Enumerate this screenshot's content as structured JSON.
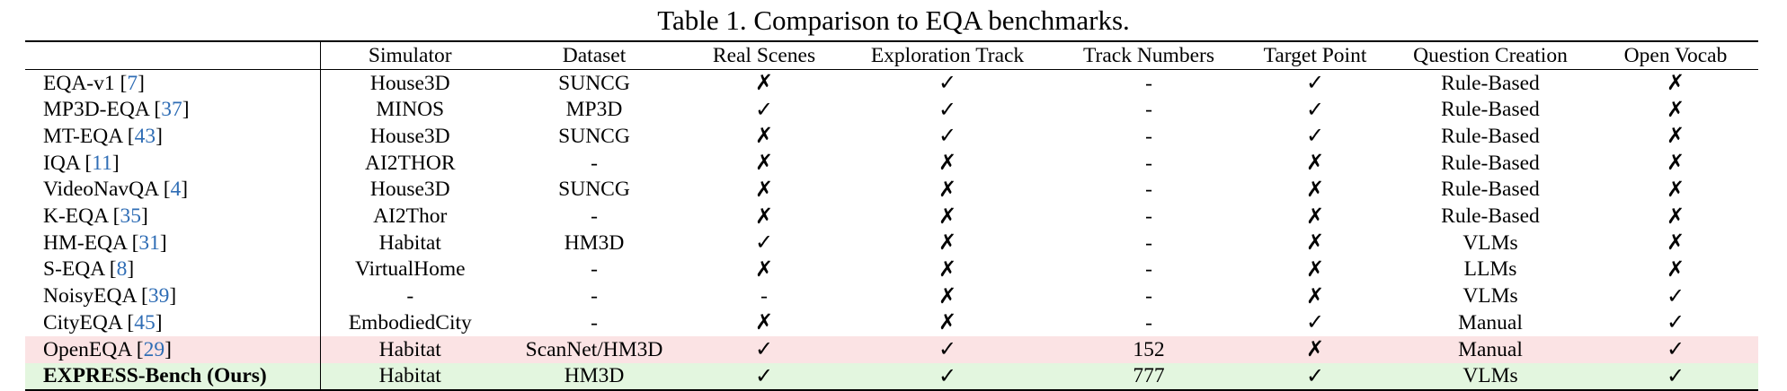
{
  "caption": "Table 1. Comparison to EQA benchmarks.",
  "columns": [
    "",
    "Simulator",
    "Dataset",
    "Real Scenes",
    "Exploration Track",
    "Track Numbers",
    "Target Point",
    "Question Creation",
    "Open Vocab"
  ],
  "rows": [
    {
      "method": "EQA-v1",
      "ref": "7",
      "simulator": "House3D",
      "dataset": "SUNCG",
      "real_scenes": "✗",
      "exploration_track": "✓",
      "track_numbers": "-",
      "target_point": "✓",
      "question_creation": "Rule-Based",
      "open_vocab": "✗"
    },
    {
      "method": "MP3D-EQA",
      "ref": "37",
      "simulator": "MINOS",
      "dataset": "MP3D",
      "real_scenes": "✓",
      "exploration_track": "✓",
      "track_numbers": "-",
      "target_point": "✓",
      "question_creation": "Rule-Based",
      "open_vocab": "✗"
    },
    {
      "method": "MT-EQA",
      "ref": "43",
      "simulator": "House3D",
      "dataset": "SUNCG",
      "real_scenes": "✗",
      "exploration_track": "✓",
      "track_numbers": "-",
      "target_point": "✓",
      "question_creation": "Rule-Based",
      "open_vocab": "✗"
    },
    {
      "method": "IQA",
      "ref": "11",
      "simulator": "AI2THOR",
      "dataset": "-",
      "real_scenes": "✗",
      "exploration_track": "✗",
      "track_numbers": "-",
      "target_point": "✗",
      "question_creation": "Rule-Based",
      "open_vocab": "✗"
    },
    {
      "method": "VideoNavQA",
      "ref": "4",
      "simulator": "House3D",
      "dataset": "SUNCG",
      "real_scenes": "✗",
      "exploration_track": "✗",
      "track_numbers": "-",
      "target_point": "✗",
      "question_creation": "Rule-Based",
      "open_vocab": "✗"
    },
    {
      "method": "K-EQA",
      "ref": "35",
      "simulator": "AI2Thor",
      "dataset": "-",
      "real_scenes": "✗",
      "exploration_track": "✗",
      "track_numbers": "-",
      "target_point": "✗",
      "question_creation": "Rule-Based",
      "open_vocab": "✗"
    },
    {
      "method": "HM-EQA",
      "ref": "31",
      "simulator": "Habitat",
      "dataset": "HM3D",
      "real_scenes": "✓",
      "exploration_track": "✗",
      "track_numbers": "-",
      "target_point": "✗",
      "question_creation": "VLMs",
      "open_vocab": "✗"
    },
    {
      "method": "S-EQA",
      "ref": "8",
      "simulator": "VirtualHome",
      "dataset": "-",
      "real_scenes": "✗",
      "exploration_track": "✗",
      "track_numbers": "-",
      "target_point": "✗",
      "question_creation": "LLMs",
      "open_vocab": "✗"
    },
    {
      "method": "NoisyEQA",
      "ref": "39",
      "simulator": "-",
      "dataset": "-",
      "real_scenes": "-",
      "exploration_track": "✗",
      "track_numbers": "-",
      "target_point": "✗",
      "question_creation": "VLMs",
      "open_vocab": "✓"
    },
    {
      "method": "CityEQA",
      "ref": "45",
      "simulator": "EmbodiedCity",
      "dataset": "-",
      "real_scenes": "✗",
      "exploration_track": "✗",
      "track_numbers": "-",
      "target_point": "✓",
      "question_creation": "Manual",
      "open_vocab": "✓"
    },
    {
      "method": "OpenEQA",
      "ref": "29",
      "simulator": "Habitat",
      "dataset": "ScanNet/HM3D",
      "real_scenes": "✓",
      "exploration_track": "✓",
      "track_numbers": "152",
      "target_point": "✗",
      "question_creation": "Manual",
      "open_vocab": "✓"
    },
    {
      "method": "EXPRESS-Bench (Ours)",
      "ref": "",
      "simulator": "Habitat",
      "dataset": "HM3D",
      "real_scenes": "✓",
      "exploration_track": "✓",
      "track_numbers": "777",
      "target_point": "✓",
      "question_creation": "VLMs",
      "open_vocab": "✓"
    }
  ],
  "highlight_colors": {
    "openeqa_row": "#fbe3e4",
    "ours_row": "#e3f6df",
    "citation": "#2f6db5"
  }
}
